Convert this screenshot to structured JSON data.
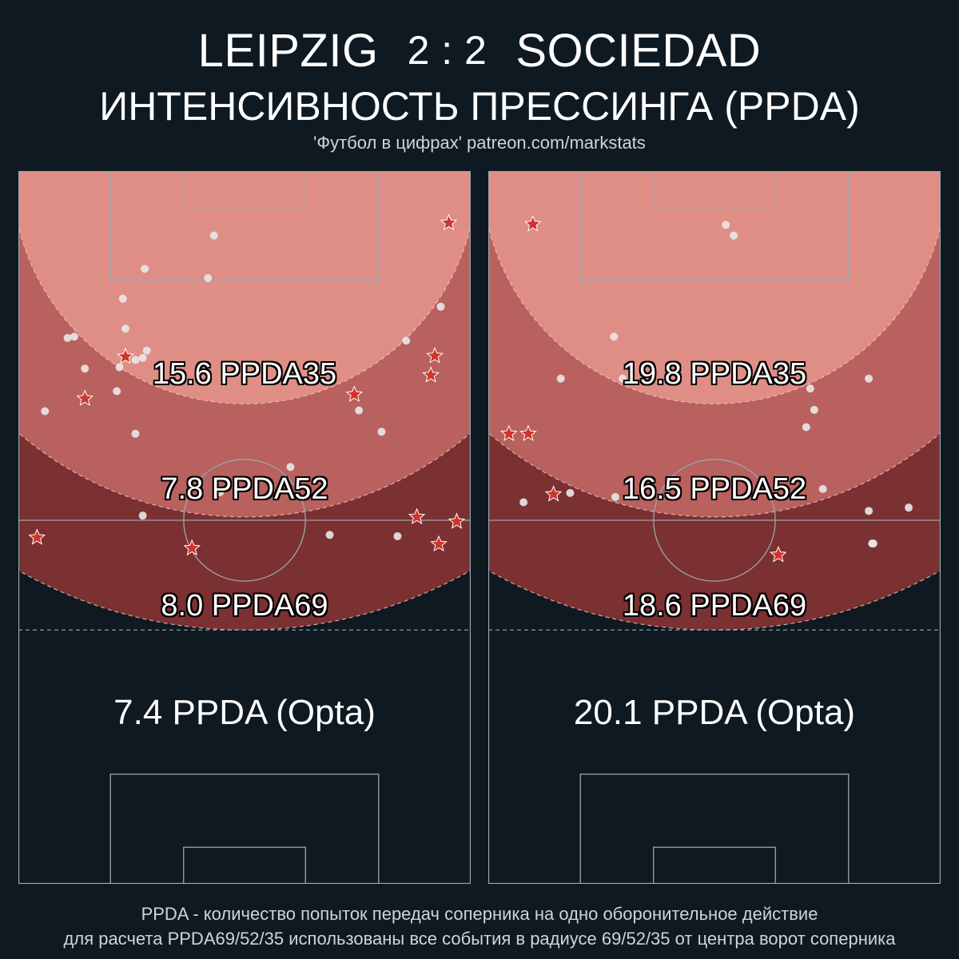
{
  "header": {
    "home_team": "LEIPZIG",
    "score": "2 : 2",
    "away_team": "SOCIEDAD",
    "subtitle": "ИНТЕНСИВНОСТЬ ПРЕССИНГА (PPDA)",
    "credit": "'Футбол в цифрах' patreon.com/markstats"
  },
  "colors": {
    "background": "#0f1921",
    "zone35": "#df8e86",
    "zone52": "#b8615e",
    "zone69": "#7b3032",
    "pitch_lines": "#9aa7ad",
    "star": "#d0342c"
  },
  "chart_data": [
    {
      "type": "scatter",
      "team": "LEIPZIG",
      "zones": [
        {
          "name": "PPDA35",
          "radius": 35,
          "value": 15.6
        },
        {
          "name": "PPDA52",
          "radius": 52,
          "value": 7.8
        },
        {
          "name": "PPDA69",
          "radius": 69,
          "value": 8.0
        }
      ],
      "labels": {
        "ppda35": "15.6 PPDA35",
        "ppda52": "7.8 PPDA52",
        "ppda69": "8.0 PPDA69"
      },
      "opta_label": "7.4 PPDA (Opta)",
      "opta_value": 7.4,
      "x_range": [
        0,
        68
      ],
      "y_range": [
        0,
        105
      ],
      "points": [
        {
          "x": 29.4,
          "y": 95.3,
          "kind": "dot"
        },
        {
          "x": 19.0,
          "y": 90.3,
          "kind": "dot"
        },
        {
          "x": 28.5,
          "y": 88.9,
          "kind": "dot"
        },
        {
          "x": 15.7,
          "y": 85.8,
          "kind": "dot"
        },
        {
          "x": 16.1,
          "y": 81.3,
          "kind": "dot"
        },
        {
          "x": 7.4,
          "y": 79.9,
          "kind": "dot"
        },
        {
          "x": 8.4,
          "y": 80.1,
          "kind": "dot"
        },
        {
          "x": 19.3,
          "y": 78.0,
          "kind": "dot"
        },
        {
          "x": 17.6,
          "y": 76.6,
          "kind": "dot"
        },
        {
          "x": 18.7,
          "y": 76.9,
          "kind": "dot"
        },
        {
          "x": 15.2,
          "y": 75.5,
          "kind": "dot"
        },
        {
          "x": 10.0,
          "y": 75.3,
          "kind": "dot"
        },
        {
          "x": 14.8,
          "y": 71.9,
          "kind": "dot"
        },
        {
          "x": 4.0,
          "y": 68.9,
          "kind": "dot"
        },
        {
          "x": 58.3,
          "y": 79.5,
          "kind": "dot"
        },
        {
          "x": 63.5,
          "y": 84.6,
          "kind": "dot"
        },
        {
          "x": 51.2,
          "y": 69.0,
          "kind": "dot"
        },
        {
          "x": 54.6,
          "y": 65.8,
          "kind": "dot"
        },
        {
          "x": 17.6,
          "y": 65.5,
          "kind": "dot"
        },
        {
          "x": 40.9,
          "y": 60.5,
          "kind": "dot"
        },
        {
          "x": 39.9,
          "y": 58.4,
          "kind": "dot"
        },
        {
          "x": 30.3,
          "y": 56.7,
          "kind": "dot"
        },
        {
          "x": 18.7,
          "y": 53.2,
          "kind": "dot"
        },
        {
          "x": 46.8,
          "y": 50.3,
          "kind": "dot"
        },
        {
          "x": 57.0,
          "y": 50.1,
          "kind": "dot"
        },
        {
          "x": 64.7,
          "y": 97.2,
          "kind": "star"
        },
        {
          "x": 16.1,
          "y": 77.1,
          "kind": "star"
        },
        {
          "x": 62.6,
          "y": 77.2,
          "kind": "star"
        },
        {
          "x": 62.0,
          "y": 74.3,
          "kind": "star"
        },
        {
          "x": 50.5,
          "y": 71.4,
          "kind": "star"
        },
        {
          "x": 10.0,
          "y": 70.8,
          "kind": "star"
        },
        {
          "x": 59.9,
          "y": 53.0,
          "kind": "star"
        },
        {
          "x": 65.9,
          "y": 52.3,
          "kind": "star"
        },
        {
          "x": 2.8,
          "y": 49.9,
          "kind": "star"
        },
        {
          "x": 63.2,
          "y": 48.9,
          "kind": "star"
        },
        {
          "x": 26.1,
          "y": 48.3,
          "kind": "star"
        }
      ]
    },
    {
      "type": "scatter",
      "team": "SOCIEDAD",
      "zones": [
        {
          "name": "PPDA35",
          "radius": 35,
          "value": 19.8
        },
        {
          "name": "PPDA52",
          "radius": 52,
          "value": 16.5
        },
        {
          "name": "PPDA69",
          "radius": 69,
          "value": 18.6
        }
      ],
      "labels": {
        "ppda35": "19.8 PPDA35",
        "ppda52": "16.5 PPDA52",
        "ppda69": "18.6 PPDA69"
      },
      "opta_label": "20.1 PPDA (Opta)",
      "opta_value": 20.1,
      "x_range": [
        0,
        68
      ],
      "y_range": [
        0,
        105
      ],
      "points": [
        {
          "x": 35.7,
          "y": 96.9,
          "kind": "dot"
        },
        {
          "x": 36.9,
          "y": 95.3,
          "kind": "dot"
        },
        {
          "x": 18.9,
          "y": 80.1,
          "kind": "dot"
        },
        {
          "x": 10.9,
          "y": 73.8,
          "kind": "dot"
        },
        {
          "x": 20.2,
          "y": 73.8,
          "kind": "dot"
        },
        {
          "x": 48.4,
          "y": 72.3,
          "kind": "dot"
        },
        {
          "x": 57.2,
          "y": 73.8,
          "kind": "dot"
        },
        {
          "x": 49.0,
          "y": 69.1,
          "kind": "dot"
        },
        {
          "x": 47.8,
          "y": 66.5,
          "kind": "dot"
        },
        {
          "x": 12.3,
          "y": 56.6,
          "kind": "dot"
        },
        {
          "x": 19.1,
          "y": 56.0,
          "kind": "dot"
        },
        {
          "x": 5.3,
          "y": 55.2,
          "kind": "dot"
        },
        {
          "x": 50.3,
          "y": 57.2,
          "kind": "dot"
        },
        {
          "x": 57.2,
          "y": 53.9,
          "kind": "dot"
        },
        {
          "x": 63.2,
          "y": 54.4,
          "kind": "dot"
        },
        {
          "x": 57.9,
          "y": 49.0,
          "kind": "dot"
        },
        {
          "x": 6.7,
          "y": 97.0,
          "kind": "star"
        },
        {
          "x": 3.1,
          "y": 65.5,
          "kind": "star"
        },
        {
          "x": 6.0,
          "y": 65.5,
          "kind": "star"
        },
        {
          "x": 9.8,
          "y": 56.4,
          "kind": "star"
        },
        {
          "x": 43.6,
          "y": 47.3,
          "kind": "star"
        },
        {
          "x": 57.7,
          "y": 49.0,
          "kind": "dot"
        }
      ]
    }
  ],
  "footer": {
    "line1": "PPDA - количество попыток передач соперника на одно оборонительное действие",
    "line2": "для расчета PPDA69/52/35 использованы все события в радиусе 69/52/35 от центра ворот соперника"
  }
}
